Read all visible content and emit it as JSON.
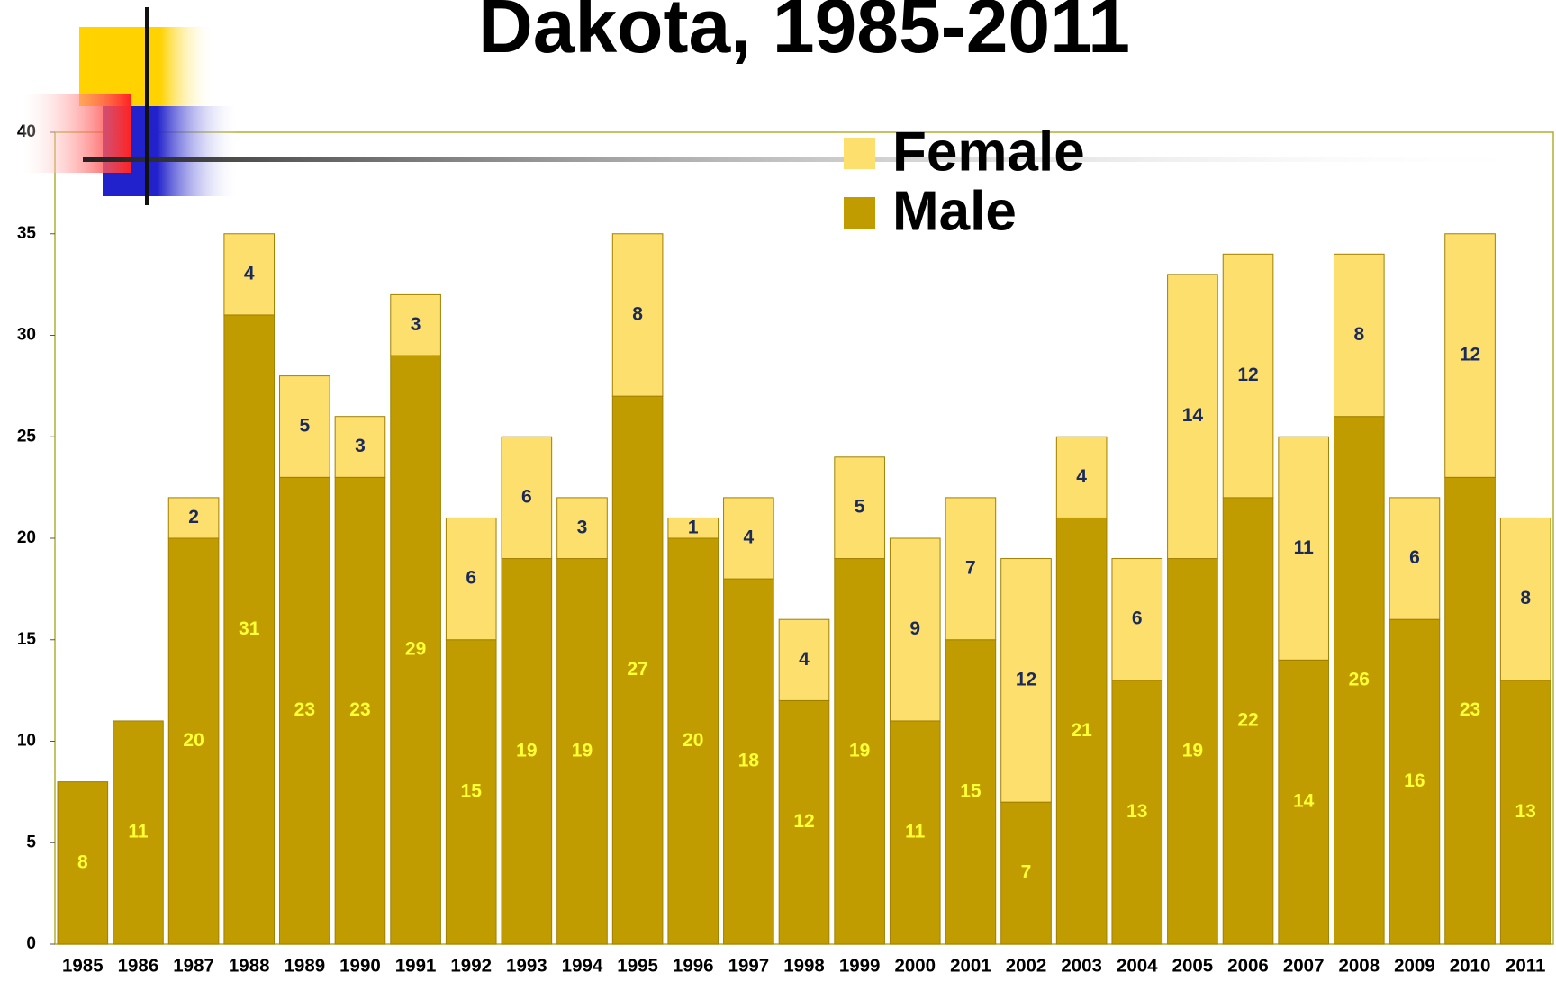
{
  "chart_data": {
    "type": "stacked_bar",
    "title": "Dakota, 1985-2011",
    "categories": [
      "1985",
      "1986",
      "1987",
      "1988",
      "1989",
      "1990",
      "1991",
      "1992",
      "1993",
      "1994",
      "1995",
      "1996",
      "1997",
      "1998",
      "1999",
      "2000",
      "2001",
      "2002",
      "2003",
      "2004",
      "2005",
      "2006",
      "2007",
      "2008",
      "2009",
      "2010",
      "2011"
    ],
    "series": [
      {
        "name": "Male",
        "color": "#c09c00",
        "label_color": "#ffff33",
        "values": [
          8,
          11,
          20,
          31,
          23,
          23,
          29,
          15,
          19,
          19,
          27,
          20,
          18,
          12,
          19,
          11,
          15,
          7,
          21,
          13,
          19,
          22,
          14,
          26,
          16,
          23,
          13
        ]
      },
      {
        "name": "Female",
        "color": "#fddf6e",
        "label_color": "#1a2a5a",
        "values": [
          null,
          null,
          2,
          4,
          5,
          3,
          3,
          6,
          6,
          3,
          8,
          1,
          4,
          4,
          5,
          9,
          7,
          12,
          4,
          6,
          14,
          12,
          11,
          8,
          6,
          12,
          8
        ]
      }
    ],
    "ylim": [
      0,
      40
    ],
    "yticks": [
      0,
      5,
      10,
      15,
      20,
      25,
      30,
      35,
      40
    ],
    "legend": "top-right"
  }
}
